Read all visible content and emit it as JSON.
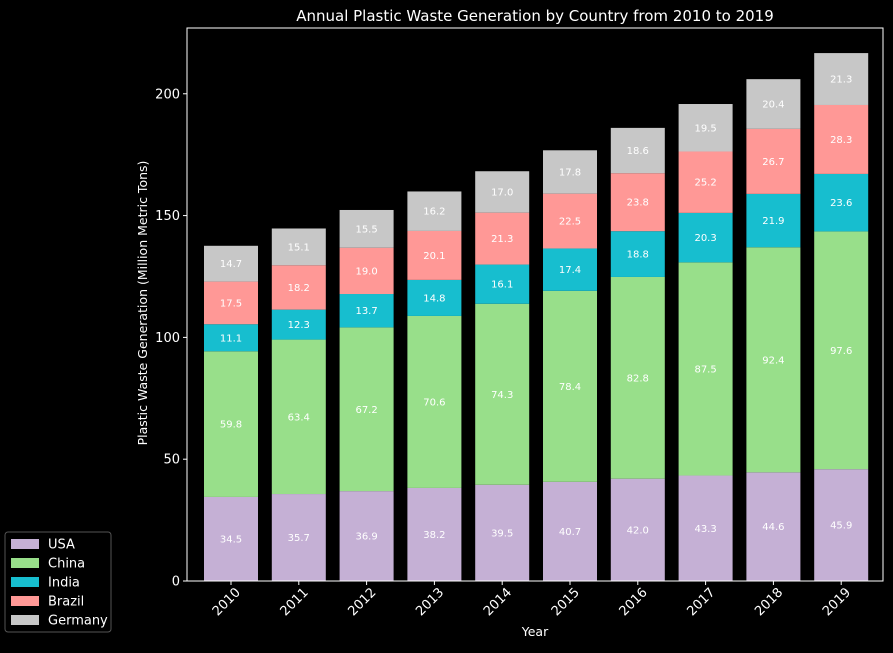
{
  "chart_data": {
    "type": "bar",
    "stacked": true,
    "title": "Annual Plastic Waste Generation by Country from 2010 to 2019",
    "xlabel": "Year",
    "ylabel": "Plastic Waste Generation (Million Metric Tons)",
    "categories": [
      "2010",
      "2011",
      "2012",
      "2013",
      "2014",
      "2015",
      "2016",
      "2017",
      "2018",
      "2019"
    ],
    "ylim": [
      0,
      227
    ],
    "yticks": [
      0,
      50,
      100,
      150,
      200
    ],
    "grid": false,
    "legend_position": "outside bottom-left",
    "background": "#000000",
    "series": [
      {
        "name": "USA",
        "color": "#c5b0d5",
        "values": [
          34.5,
          35.7,
          36.9,
          38.2,
          39.5,
          40.7,
          42.0,
          43.3,
          44.6,
          45.9
        ]
      },
      {
        "name": "China",
        "color": "#98df8a",
        "values": [
          59.8,
          63.4,
          67.2,
          70.6,
          74.3,
          78.4,
          82.8,
          87.5,
          92.4,
          97.6
        ]
      },
      {
        "name": "India",
        "color": "#17becf",
        "values": [
          11.1,
          12.3,
          13.7,
          14.8,
          16.1,
          17.4,
          18.8,
          20.3,
          21.9,
          23.6
        ]
      },
      {
        "name": "Brazil",
        "color": "#ff9896",
        "values": [
          17.5,
          18.2,
          19.0,
          20.1,
          21.3,
          22.5,
          23.8,
          25.2,
          26.7,
          28.3
        ]
      },
      {
        "name": "Germany",
        "color": "#c7c7c7",
        "values": [
          14.7,
          15.1,
          15.5,
          16.2,
          17.0,
          17.8,
          18.6,
          19.5,
          20.4,
          21.3
        ]
      }
    ]
  }
}
